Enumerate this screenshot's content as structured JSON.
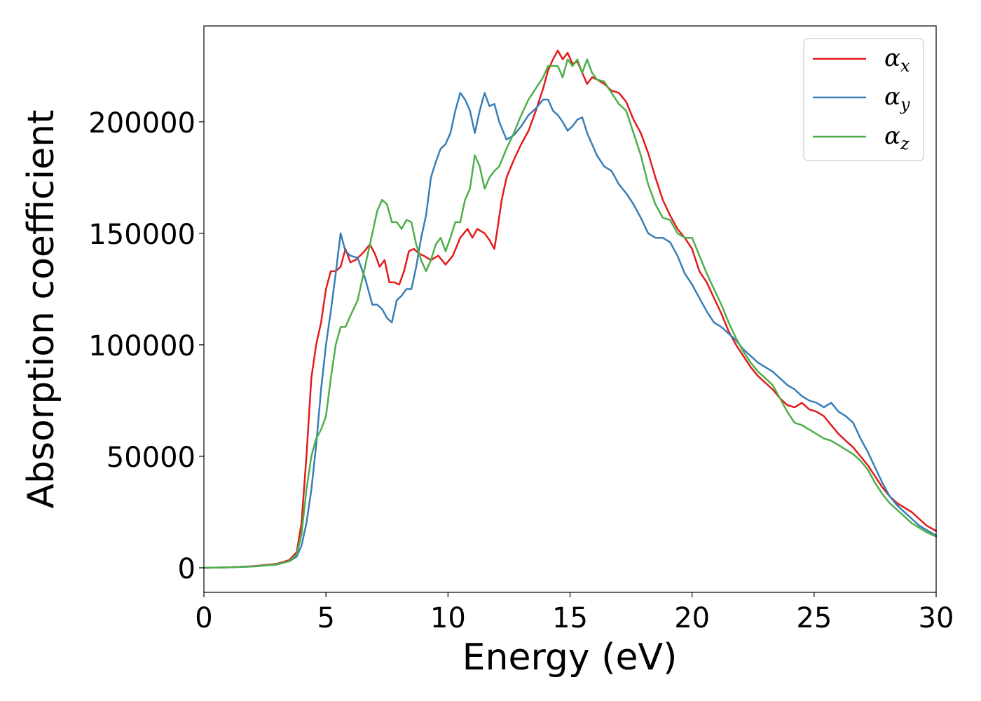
{
  "chart_data": {
    "type": "line",
    "title": "",
    "xlabel": "Energy (eV)",
    "ylabel": "Absorption coefficient",
    "xlim": [
      0,
      30
    ],
    "ylim": [
      -11000,
      243000
    ],
    "xticks": [
      0,
      5,
      10,
      15,
      20,
      25,
      30
    ],
    "yticks": [
      0,
      50000,
      100000,
      150000,
      200000
    ],
    "xtick_labels": [
      "0",
      "5",
      "10",
      "15",
      "20",
      "25",
      "30"
    ],
    "ytick_labels": [
      "0",
      "50000",
      "100000",
      "150000",
      "200000"
    ],
    "grid": false,
    "legend_position": "top-right",
    "series": [
      {
        "name": "α_x",
        "legend_main": "α",
        "legend_sub": "x",
        "color": "#e41a1c",
        "x": [
          0,
          1,
          2,
          3,
          3.5,
          3.8,
          4.0,
          4.2,
          4.4,
          4.6,
          4.8,
          5.0,
          5.2,
          5.4,
          5.6,
          5.8,
          6.0,
          6.2,
          6.5,
          6.8,
          7.0,
          7.2,
          7.4,
          7.6,
          7.8,
          8.0,
          8.2,
          8.4,
          8.6,
          8.8,
          9.0,
          9.3,
          9.6,
          9.9,
          10.2,
          10.5,
          10.8,
          11.0,
          11.2,
          11.5,
          11.7,
          11.9,
          12.0,
          12.2,
          12.4,
          12.7,
          13.0,
          13.3,
          13.6,
          13.9,
          14.1,
          14.3,
          14.5,
          14.7,
          14.9,
          15.1,
          15.3,
          15.5,
          15.7,
          15.9,
          16.1,
          16.4,
          16.7,
          17.0,
          17.3,
          17.6,
          17.9,
          18.2,
          18.5,
          18.8,
          19.1,
          19.4,
          19.7,
          20.0,
          20.3,
          20.6,
          20.9,
          21.2,
          21.5,
          21.8,
          22.1,
          22.4,
          22.7,
          23.0,
          23.3,
          23.6,
          23.9,
          24.2,
          24.5,
          24.8,
          25.1,
          25.4,
          25.7,
          26.0,
          26.3,
          26.6,
          26.9,
          27.2,
          27.5,
          27.8,
          28.1,
          28.4,
          28.7,
          29.0,
          29.3,
          29.6,
          30.0
        ],
        "values": [
          0,
          200,
          700,
          1800,
          3500,
          7000,
          20000,
          50000,
          85000,
          100000,
          110000,
          125000,
          133000,
          133000,
          135000,
          143000,
          137000,
          138000,
          141000,
          145000,
          141000,
          135000,
          138000,
          128000,
          128000,
          127000,
          133000,
          142000,
          143000,
          141000,
          140000,
          138000,
          140000,
          136000,
          140000,
          148000,
          152000,
          148000,
          152000,
          150000,
          147000,
          143000,
          150000,
          165000,
          175000,
          183000,
          190000,
          196000,
          205000,
          215000,
          223000,
          228000,
          232000,
          228000,
          231000,
          226000,
          227000,
          222000,
          217000,
          220000,
          219000,
          217000,
          214000,
          213000,
          209000,
          201000,
          195000,
          186000,
          175000,
          165000,
          158000,
          152000,
          148000,
          143000,
          133000,
          128000,
          121000,
          114000,
          106000,
          100000,
          95000,
          90000,
          86000,
          83000,
          80000,
          76000,
          73000,
          72000,
          74000,
          71000,
          70000,
          68000,
          64000,
          60000,
          57000,
          54000,
          50000,
          46000,
          41000,
          36000,
          32000,
          29000,
          27000,
          25000,
          22000,
          19000,
          16500
        ]
      },
      {
        "name": "α_y",
        "legend_main": "α",
        "legend_sub": "y",
        "color": "#377eb8",
        "x": [
          0,
          1,
          2,
          3,
          3.5,
          3.8,
          4.0,
          4.2,
          4.4,
          4.6,
          4.8,
          5.0,
          5.2,
          5.4,
          5.6,
          5.8,
          6.0,
          6.3,
          6.6,
          6.9,
          7.1,
          7.3,
          7.5,
          7.7,
          7.9,
          8.1,
          8.3,
          8.5,
          8.7,
          8.9,
          9.1,
          9.3,
          9.5,
          9.7,
          9.9,
          10.1,
          10.3,
          10.5,
          10.7,
          10.9,
          11.1,
          11.3,
          11.5,
          11.7,
          11.9,
          12.1,
          12.4,
          12.7,
          13.0,
          13.3,
          13.6,
          13.9,
          14.1,
          14.3,
          14.5,
          14.7,
          14.9,
          15.1,
          15.3,
          15.5,
          15.7,
          15.9,
          16.1,
          16.4,
          16.7,
          17.0,
          17.3,
          17.6,
          17.9,
          18.2,
          18.5,
          18.8,
          19.1,
          19.4,
          19.7,
          20.0,
          20.3,
          20.6,
          20.9,
          21.2,
          21.5,
          21.8,
          22.1,
          22.4,
          22.7,
          23.0,
          23.3,
          23.6,
          23.9,
          24.2,
          24.5,
          24.8,
          25.1,
          25.4,
          25.7,
          26.0,
          26.3,
          26.6,
          26.9,
          27.2,
          27.5,
          27.8,
          28.1,
          28.4,
          28.7,
          29.0,
          29.3,
          29.6,
          30.0
        ],
        "values": [
          0,
          200,
          600,
          1500,
          3000,
          5000,
          10000,
          20000,
          35000,
          55000,
          80000,
          100000,
          115000,
          132000,
          150000,
          142000,
          140000,
          139000,
          130000,
          118000,
          118000,
          116000,
          112000,
          110000,
          120000,
          122000,
          125000,
          125000,
          135000,
          148000,
          158000,
          175000,
          182000,
          188000,
          190000,
          195000,
          205000,
          213000,
          210000,
          205000,
          195000,
          205000,
          213000,
          207000,
          208000,
          200000,
          192000,
          194000,
          198000,
          203000,
          206000,
          210000,
          210000,
          205000,
          203000,
          200000,
          196000,
          198000,
          201000,
          202000,
          195000,
          190000,
          185000,
          180000,
          178000,
          172000,
          168000,
          163000,
          157000,
          150000,
          148000,
          148000,
          146000,
          140000,
          132000,
          127000,
          121000,
          115000,
          110000,
          108000,
          105000,
          102000,
          98000,
          95000,
          92000,
          90000,
          88000,
          85000,
          82000,
          80000,
          77000,
          75000,
          74000,
          72000,
          74000,
          70000,
          68000,
          65000,
          58000,
          52000,
          45000,
          38000,
          32000,
          28000,
          25000,
          22000,
          19000,
          17000,
          14500
        ]
      },
      {
        "name": "α_z",
        "legend_main": "α",
        "legend_sub": "z",
        "color": "#4daf4a",
        "x": [
          0,
          1,
          2,
          3,
          3.5,
          3.8,
          4.0,
          4.2,
          4.4,
          4.6,
          4.8,
          5.0,
          5.2,
          5.4,
          5.6,
          5.8,
          6.0,
          6.3,
          6.6,
          6.9,
          7.1,
          7.3,
          7.5,
          7.7,
          7.9,
          8.1,
          8.3,
          8.5,
          8.7,
          8.9,
          9.1,
          9.3,
          9.5,
          9.7,
          9.9,
          10.1,
          10.3,
          10.5,
          10.7,
          10.9,
          11.1,
          11.3,
          11.5,
          11.7,
          11.9,
          12.1,
          12.4,
          12.7,
          13.0,
          13.3,
          13.6,
          13.9,
          14.1,
          14.3,
          14.5,
          14.7,
          14.9,
          15.1,
          15.3,
          15.5,
          15.7,
          15.9,
          16.1,
          16.4,
          16.7,
          17.0,
          17.3,
          17.6,
          17.9,
          18.2,
          18.5,
          18.8,
          19.1,
          19.4,
          19.7,
          20.0,
          20.3,
          20.6,
          20.9,
          21.2,
          21.5,
          21.8,
          22.1,
          22.4,
          22.7,
          23.0,
          23.3,
          23.6,
          23.9,
          24.2,
          24.5,
          24.8,
          25.1,
          25.4,
          25.7,
          26.0,
          26.3,
          26.6,
          26.9,
          27.2,
          27.5,
          27.8,
          28.1,
          28.4,
          28.7,
          29.0,
          29.3,
          29.6,
          30.0
        ],
        "values": [
          0,
          200,
          600,
          1500,
          3000,
          6000,
          15000,
          35000,
          50000,
          58000,
          62000,
          68000,
          85000,
          100000,
          108000,
          108000,
          113000,
          120000,
          135000,
          150000,
          160000,
          165000,
          163000,
          155000,
          155000,
          152000,
          156000,
          155000,
          145000,
          138000,
          133000,
          138000,
          145000,
          148000,
          142000,
          148000,
          155000,
          155000,
          165000,
          170000,
          185000,
          180000,
          170000,
          175000,
          178000,
          180000,
          188000,
          195000,
          203000,
          210000,
          215000,
          220000,
          225000,
          225000,
          225000,
          220000,
          228000,
          225000,
          228000,
          222000,
          228000,
          222000,
          219000,
          218000,
          213000,
          208000,
          205000,
          195000,
          185000,
          172000,
          163000,
          157000,
          156000,
          150000,
          148000,
          148000,
          140000,
          132000,
          125000,
          118000,
          110000,
          103000,
          97000,
          92000,
          88000,
          85000,
          82000,
          76000,
          70000,
          65000,
          64000,
          62000,
          60000,
          58000,
          57000,
          55000,
          53000,
          51000,
          48000,
          44000,
          38000,
          33000,
          29000,
          26000,
          23000,
          20000,
          18000,
          16000,
          14000
        ]
      }
    ]
  }
}
